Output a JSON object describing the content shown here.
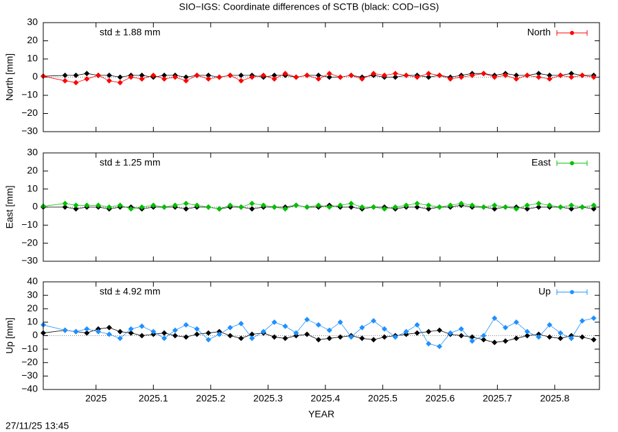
{
  "title": "SIO−IGS: Coordinate differences of SCTB (black: COD−IGS)",
  "timestamp": "27/11/25 13:45",
  "chart_data": [
    {
      "type": "line",
      "ylabel": "North [mm]",
      "annotation": "std ± 1.88 mm",
      "annotation_color": "#ff0000",
      "x": [
        2024.908,
        2024.946,
        2024.965,
        2024.984,
        2025.004,
        2025.023,
        2025.042,
        2025.061,
        2025.08,
        2025.1,
        2025.119,
        2025.138,
        2025.157,
        2025.176,
        2025.196,
        2025.215,
        2025.234,
        2025.253,
        2025.272,
        2025.292,
        2025.311,
        2025.33,
        2025.349,
        2025.368,
        2025.388,
        2025.407,
        2025.426,
        2025.445,
        2025.464,
        2025.484,
        2025.503,
        2025.522,
        2025.541,
        2025.56,
        2025.58,
        2025.599,
        2025.618,
        2025.637,
        2025.656,
        2025.676,
        2025.695,
        2025.714,
        2025.733,
        2025.752,
        2025.772,
        2025.791,
        2025.81,
        2025.829,
        2025.848,
        2025.868
      ],
      "series": [
        {
          "color": "#000000",
          "values": [
            0.5,
            1,
            1,
            2,
            1,
            1,
            0,
            1,
            1,
            0,
            1,
            1,
            0,
            1,
            1,
            0,
            1,
            1,
            1,
            0,
            1,
            1,
            0,
            1,
            1,
            0,
            0,
            1,
            0,
            1,
            0,
            0,
            1,
            1,
            0,
            1,
            0,
            1,
            2,
            2,
            1,
            2,
            1,
            1,
            2,
            1,
            1,
            2,
            1,
            1
          ]
        },
        {
          "name": "North",
          "color": "#ff0000",
          "values": [
            0.5,
            -2,
            -3,
            -1,
            1,
            -2,
            -3,
            0,
            -1,
            1,
            -1,
            0,
            -2,
            1,
            -1,
            0,
            1,
            -2,
            0,
            1,
            -1,
            2,
            0,
            1,
            -1,
            2,
            0,
            1,
            -1,
            2,
            1,
            2,
            1,
            0,
            2,
            1,
            -1,
            0,
            1,
            2,
            0,
            1,
            -1,
            1,
            0,
            -1,
            1,
            0,
            1,
            0
          ]
        }
      ],
      "xlim": [
        2024.908,
        2025.878
      ],
      "xticks": [
        2025,
        2025.1,
        2025.2,
        2025.3,
        2025.4,
        2025.5,
        2025.6,
        2025.7,
        2025.8
      ],
      "ylim": [
        -30,
        30
      ],
      "yticks": [
        {
          "value": -30,
          "label": "−30"
        },
        {
          "value": -20,
          "label": "−20"
        },
        {
          "value": -10,
          "label": "−10"
        },
        0,
        10,
        20,
        30
      ]
    },
    {
      "type": "line",
      "ylabel": "East [mm]",
      "annotation": "std ± 1.25 mm",
      "annotation_color": "#00c000",
      "x": [
        2024.908,
        2024.946,
        2024.965,
        2024.984,
        2025.004,
        2025.023,
        2025.042,
        2025.061,
        2025.08,
        2025.1,
        2025.119,
        2025.138,
        2025.157,
        2025.176,
        2025.196,
        2025.215,
        2025.234,
        2025.253,
        2025.272,
        2025.292,
        2025.311,
        2025.33,
        2025.349,
        2025.368,
        2025.388,
        2025.407,
        2025.426,
        2025.445,
        2025.464,
        2025.484,
        2025.503,
        2025.522,
        2025.541,
        2025.56,
        2025.58,
        2025.599,
        2025.618,
        2025.637,
        2025.656,
        2025.676,
        2025.695,
        2025.714,
        2025.733,
        2025.752,
        2025.772,
        2025.791,
        2025.81,
        2025.829,
        2025.848,
        2025.868
      ],
      "series": [
        {
          "color": "#000000",
          "values": [
            0,
            0,
            -1,
            0,
            0,
            -1,
            0,
            0,
            -1,
            0,
            0,
            0,
            -1,
            0,
            0,
            -1,
            0,
            0,
            -1,
            0,
            0,
            0,
            1,
            0,
            0,
            1,
            0,
            0,
            -1,
            0,
            0,
            -1,
            0,
            0,
            -1,
            0,
            0,
            1,
            0,
            0,
            -1,
            0,
            0,
            -1,
            0,
            0,
            0,
            -1,
            0,
            -1
          ]
        },
        {
          "name": "East",
          "color": "#00c000",
          "values": [
            0.5,
            2,
            1,
            1,
            1,
            0,
            1,
            -1,
            0,
            1,
            0,
            1,
            2,
            1,
            0,
            -1,
            1,
            0,
            2,
            1,
            0,
            -1,
            1,
            0,
            1,
            0,
            1,
            2,
            0,
            0,
            -1,
            0,
            1,
            2,
            1,
            0,
            1,
            2,
            1,
            0,
            1,
            0,
            -1,
            1,
            2,
            1,
            0,
            1,
            0,
            1
          ]
        }
      ],
      "xlim": [
        2024.908,
        2025.878
      ],
      "xticks": [
        2025,
        2025.1,
        2025.2,
        2025.3,
        2025.4,
        2025.5,
        2025.6,
        2025.7,
        2025.8
      ],
      "ylim": [
        -30,
        30
      ],
      "yticks": [
        {
          "value": -30,
          "label": "−30"
        },
        {
          "value": -20,
          "label": "−20"
        },
        {
          "value": -10,
          "label": "−10"
        },
        0,
        10,
        20,
        30
      ]
    },
    {
      "type": "line",
      "ylabel": "Up [mm]",
      "xlabel": "YEAR",
      "annotation": "std ± 4.92 mm",
      "annotation_color": "#1e90ff",
      "x": [
        2024.908,
        2024.946,
        2024.965,
        2024.984,
        2025.004,
        2025.023,
        2025.042,
        2025.061,
        2025.08,
        2025.1,
        2025.119,
        2025.138,
        2025.157,
        2025.176,
        2025.196,
        2025.215,
        2025.234,
        2025.253,
        2025.272,
        2025.292,
        2025.311,
        2025.33,
        2025.349,
        2025.368,
        2025.388,
        2025.407,
        2025.426,
        2025.445,
        2025.464,
        2025.484,
        2025.503,
        2025.522,
        2025.541,
        2025.56,
        2025.58,
        2025.599,
        2025.618,
        2025.637,
        2025.656,
        2025.676,
        2025.695,
        2025.714,
        2025.733,
        2025.752,
        2025.772,
        2025.791,
        2025.81,
        2025.829,
        2025.848,
        2025.868
      ],
      "series": [
        {
          "color": "#000000",
          "values": [
            2,
            4,
            3,
            2,
            5,
            6,
            3,
            2,
            0,
            1,
            2,
            0,
            -1,
            1,
            2,
            3,
            0,
            -2,
            1,
            2,
            -1,
            -2,
            0,
            1,
            -3,
            -2,
            -1,
            0,
            -2,
            -3,
            -1,
            0,
            1,
            2,
            3,
            4,
            1,
            0,
            -1,
            -3,
            -5,
            -4,
            -2,
            0,
            1,
            -1,
            -2,
            0,
            -1,
            -3
          ]
        },
        {
          "name": "Up",
          "color": "#1e90ff",
          "values": [
            8,
            4,
            3,
            5,
            3,
            1,
            -2,
            5,
            7,
            3,
            -2,
            4,
            8,
            5,
            -3,
            1,
            6,
            9,
            -2,
            3,
            10,
            7,
            2,
            12,
            8,
            4,
            10,
            -1,
            6,
            11,
            5,
            -1,
            3,
            8,
            -6,
            -8,
            2,
            5,
            -4,
            0,
            13,
            6,
            10,
            3,
            -1,
            8,
            2,
            -2,
            11,
            13
          ]
        }
      ],
      "xlim": [
        2024.908,
        2025.878
      ],
      "xticks": [
        2025,
        2025.1,
        2025.2,
        2025.3,
        2025.4,
        2025.5,
        2025.6,
        2025.7,
        2025.8
      ],
      "ylim": [
        -40,
        40
      ],
      "yticks": [
        {
          "value": -40,
          "label": "−40"
        },
        {
          "value": -30,
          "label": "−30"
        },
        {
          "value": -20,
          "label": "−20"
        },
        {
          "value": -10,
          "label": "−10"
        },
        0,
        10,
        20,
        30,
        40
      ]
    }
  ]
}
